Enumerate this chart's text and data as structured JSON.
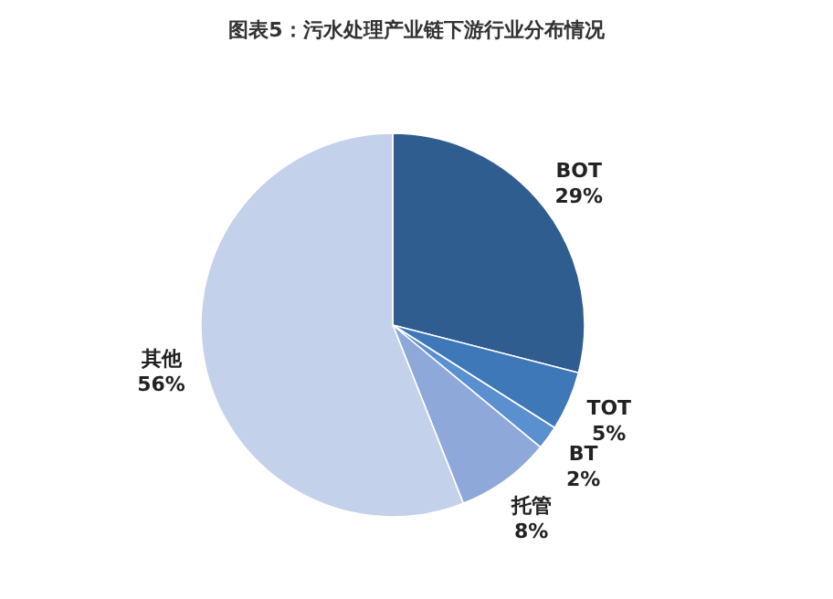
{
  "chart_data": {
    "type": "pie",
    "title": "图表5：污水处理产业链下游行业分布情况",
    "categories": [
      "BOT",
      "TOT",
      "BT",
      "托管",
      "其他"
    ],
    "values": [
      29,
      5,
      2,
      8,
      56
    ],
    "colors": [
      "#2f5d90",
      "#3f78b8",
      "#5a8fd0",
      "#8ea9d9",
      "#c3d1ea"
    ],
    "value_labels": [
      "29%",
      "5%",
      "2%",
      "8%",
      "56%"
    ]
  }
}
